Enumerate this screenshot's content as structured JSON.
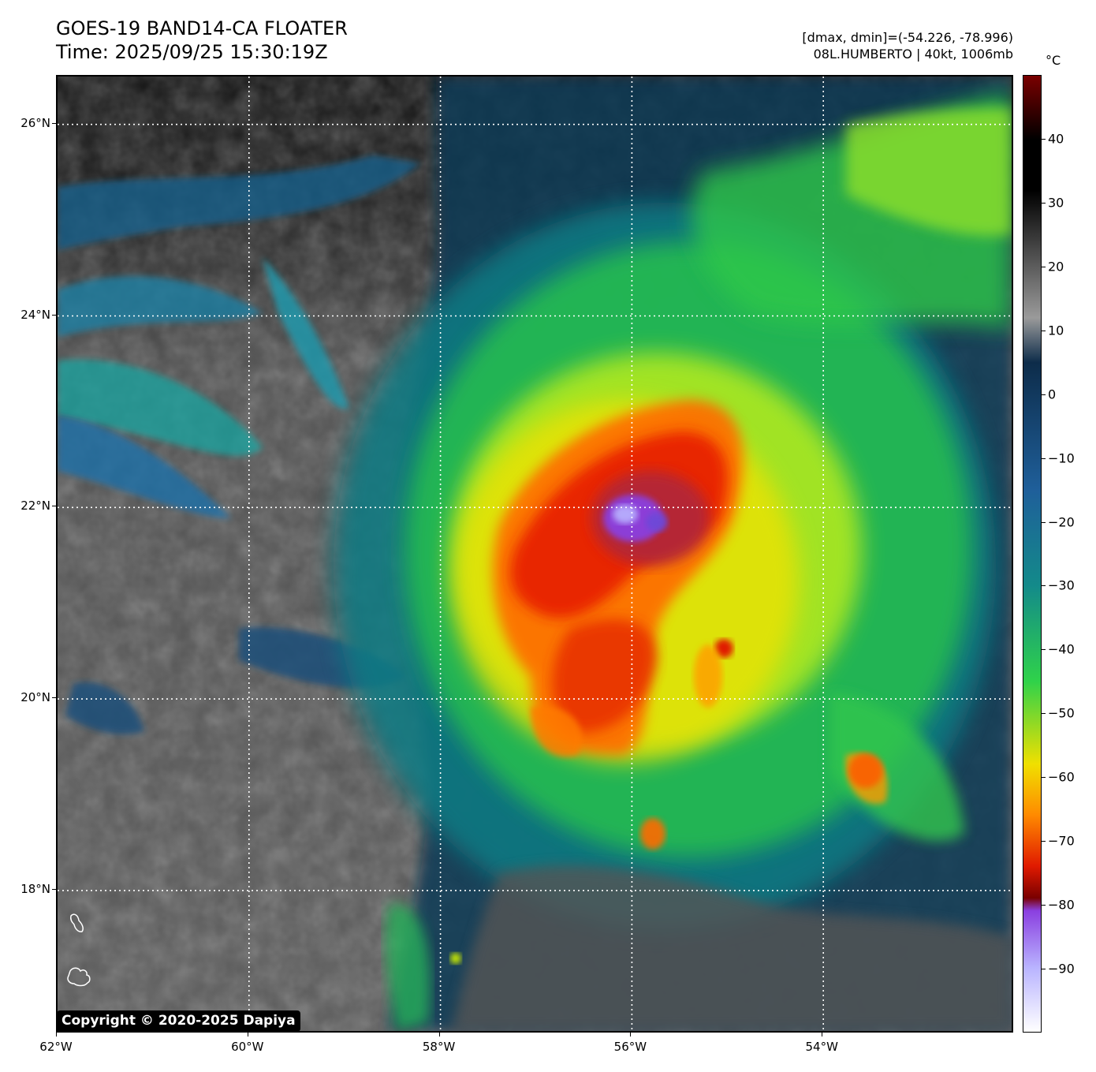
{
  "header": {
    "title_line1": "GOES-19 BAND14-CA FLOATER",
    "title_line2": "Time: 2025/09/25 15:30:19Z",
    "info_line1": "[dmax, dmin]=(-54.226, -78.996)",
    "info_line2": "08L.HUMBERTO | 40kt, 1006mb"
  },
  "map": {
    "lon_range": [
      -62,
      -52
    ],
    "lat_range": [
      16.5,
      26.5
    ],
    "x_ticks": [
      {
        "lon": -62,
        "label": "62°W"
      },
      {
        "lon": -60,
        "label": "60°W"
      },
      {
        "lon": -58,
        "label": "58°W"
      },
      {
        "lon": -56,
        "label": "56°W"
      },
      {
        "lon": -54,
        "label": "54°W"
      }
    ],
    "y_ticks": [
      {
        "lat": 26,
        "label": "26°N"
      },
      {
        "lat": 24,
        "label": "24°N"
      },
      {
        "lat": 22,
        "label": "22°N"
      },
      {
        "lat": 20,
        "label": "20°N"
      },
      {
        "lat": 18,
        "label": "18°N"
      }
    ],
    "storm_center": {
      "lon": -55.8,
      "lat": 21.8
    },
    "islands": [
      {
        "name": "island-north",
        "lon": -61.8,
        "lat": 17.3
      },
      {
        "name": "island-south",
        "lon": -61.8,
        "lat": 16.75
      }
    ]
  },
  "colorbar": {
    "unit": "°C",
    "ticks": [
      "40",
      "30",
      "20",
      "10",
      "0",
      "−10",
      "−20",
      "−30",
      "−40",
      "−50",
      "−60",
      "−70",
      "−80",
      "−90"
    ],
    "tick_values": [
      40,
      30,
      20,
      10,
      0,
      -10,
      -20,
      -30,
      -40,
      -50,
      -60,
      -70,
      -80,
      -90
    ],
    "range": [
      -100,
      50
    ],
    "colors": {
      "warm_top": "#7a0000",
      "black": "#000000",
      "gray": "#9a9a9a",
      "navy": "#0d2c4a",
      "blue": "#1f5f9a",
      "teal": "#138a8a",
      "green": "#2fd24a",
      "yellow": "#f0e000",
      "orange": "#ff8a00",
      "red": "#e01a00",
      "purple": "#8a3fe0",
      "lavender": "#b9b4ff",
      "white": "#ffffff"
    }
  },
  "copyright": "Copyright © 2020-2025 Dapiya"
}
